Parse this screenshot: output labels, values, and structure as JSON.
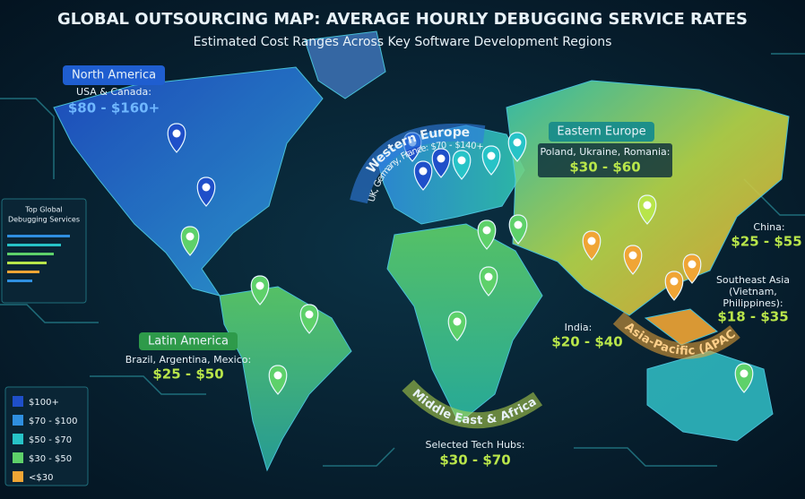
{
  "header": {
    "title": "GLOBAL OUTSOURCING MAP: AVERAGE HOURLY DEBUGGING SERVICE RATES",
    "subtitle": "Estimated Cost Ranges Across Key Software Development Regions"
  },
  "regions": {
    "north_america": {
      "name": "North America",
      "detail": "USA & Canada:",
      "rate": "$80 - $160+"
    },
    "western_europe": {
      "name": "Western Europe",
      "detail": "UK, Germany, France: $70 - $140+"
    },
    "eastern_europe": {
      "name": "Eastern Europe",
      "detail": "Poland, Ukraine, Romania:",
      "rate": "$30 - $60"
    },
    "china": {
      "detail": "China:",
      "rate": "$25 - $55"
    },
    "southeast_asia": {
      "detail": [
        "Southeast Asia",
        "(Vietnam,",
        "Philippines):"
      ],
      "rate": "$18 - $35"
    },
    "india": {
      "detail": "India:",
      "rate": "$20 - $40"
    },
    "apac": {
      "name": "Asia-Pacific (APAC)"
    },
    "latin_america": {
      "name": "Latin America",
      "detail": "Brazil, Argentina, Mexico:",
      "rate": "$25 - $50"
    },
    "middle_east_africa": {
      "name": "Middle East & Africa",
      "detail": "Selected Tech Hubs:",
      "rate": "$30 - $70"
    }
  },
  "side_panel": {
    "title": [
      "Top Global",
      "Debugging Services"
    ]
  },
  "legend": {
    "items": [
      {
        "label": "$100+",
        "color": "#1f4fc9"
      },
      {
        "label": "$70 - $100",
        "color": "#2f8fe0"
      },
      {
        "label": "$50 - $70",
        "color": "#27c3c7"
      },
      {
        "label": "$30 - $50",
        "color": "#5ed16a"
      },
      {
        "label": "<$30",
        "color": "#f0a535"
      }
    ]
  }
}
